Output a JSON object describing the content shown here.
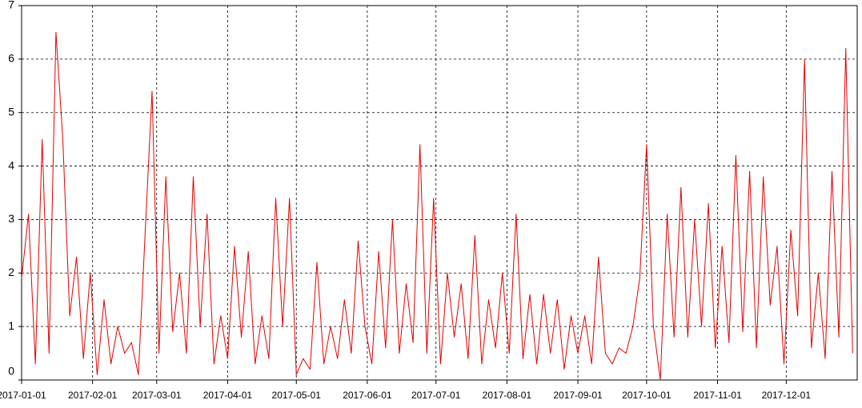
{
  "chart_data": {
    "type": "line",
    "x": [
      "2017-01-01",
      "2017-01-04",
      "2017-01-07",
      "2017-01-10",
      "2017-01-13",
      "2017-01-16",
      "2017-01-19",
      "2017-01-22",
      "2017-01-25",
      "2017-01-28",
      "2017-01-31",
      "2017-02-03",
      "2017-02-06",
      "2017-02-09",
      "2017-02-12",
      "2017-02-15",
      "2017-02-18",
      "2017-02-21",
      "2017-02-24",
      "2017-02-27",
      "2017-03-02",
      "2017-03-05",
      "2017-03-08",
      "2017-03-11",
      "2017-03-14",
      "2017-03-17",
      "2017-03-20",
      "2017-03-23",
      "2017-03-26",
      "2017-03-29",
      "2017-04-01",
      "2017-04-04",
      "2017-04-07",
      "2017-04-10",
      "2017-04-13",
      "2017-04-16",
      "2017-04-19",
      "2017-04-22",
      "2017-04-25",
      "2017-04-28",
      "2017-05-01",
      "2017-05-04",
      "2017-05-07",
      "2017-05-10",
      "2017-05-13",
      "2017-05-16",
      "2017-05-19",
      "2017-05-22",
      "2017-05-25",
      "2017-05-28",
      "2017-05-31",
      "2017-06-03",
      "2017-06-06",
      "2017-06-09",
      "2017-06-12",
      "2017-06-15",
      "2017-06-18",
      "2017-06-21",
      "2017-06-24",
      "2017-06-27",
      "2017-06-30",
      "2017-07-03",
      "2017-07-06",
      "2017-07-09",
      "2017-07-12",
      "2017-07-15",
      "2017-07-18",
      "2017-07-21",
      "2017-07-24",
      "2017-07-27",
      "2017-07-30",
      "2017-08-02",
      "2017-08-05",
      "2017-08-08",
      "2017-08-11",
      "2017-08-14",
      "2017-08-17",
      "2017-08-20",
      "2017-08-23",
      "2017-08-26",
      "2017-08-29",
      "2017-09-01",
      "2017-09-04",
      "2017-09-07",
      "2017-09-10",
      "2017-09-13",
      "2017-09-16",
      "2017-09-19",
      "2017-09-22",
      "2017-09-25",
      "2017-09-28",
      "2017-10-01",
      "2017-10-04",
      "2017-10-07",
      "2017-10-10",
      "2017-10-13",
      "2017-10-16",
      "2017-10-19",
      "2017-10-22",
      "2017-10-25",
      "2017-10-28",
      "2017-10-31",
      "2017-11-03",
      "2017-11-06",
      "2017-11-09",
      "2017-11-12",
      "2017-11-15",
      "2017-11-18",
      "2017-11-21",
      "2017-11-24",
      "2017-11-27",
      "2017-11-30",
      "2017-12-03",
      "2017-12-06",
      "2017-12-09",
      "2017-12-12",
      "2017-12-15",
      "2017-12-18",
      "2017-12-21",
      "2017-12-24",
      "2017-12-27",
      "2017-12-30"
    ],
    "series": [
      {
        "color": "#e00000",
        "values": [
          1.9,
          3.1,
          0.3,
          4.5,
          0.5,
          6.5,
          4.5,
          1.2,
          2.3,
          0.4,
          2.0,
          0.1,
          1.5,
          0.3,
          1.0,
          0.5,
          0.7,
          0.1,
          2.8,
          5.4,
          0.5,
          3.8,
          0.9,
          2.0,
          0.5,
          3.8,
          1.0,
          3.1,
          0.3,
          1.2,
          0.4,
          2.5,
          0.8,
          2.4,
          0.3,
          1.2,
          0.4,
          3.4,
          1.0,
          3.4,
          0.1,
          0.4,
          0.2,
          2.2,
          0.3,
          1.0,
          0.4,
          1.5,
          0.5,
          2.6,
          1.0,
          0.3,
          2.4,
          0.6,
          3.0,
          0.5,
          1.8,
          0.7,
          4.4,
          0.5,
          3.4,
          0.3,
          2.0,
          0.8,
          1.8,
          0.4,
          2.7,
          0.3,
          1.5,
          0.6,
          2.0,
          0.5,
          3.1,
          0.4,
          1.6,
          0.3,
          1.6,
          0.5,
          1.5,
          0.2,
          1.2,
          0.5,
          1.2,
          0.3,
          2.3,
          0.5,
          0.3,
          0.6,
          0.5,
          1.0,
          1.9,
          4.4,
          1.0,
          0.0,
          3.1,
          0.8,
          3.6,
          0.8,
          3.0,
          1.0,
          3.3,
          0.6,
          2.5,
          0.7,
          4.2,
          0.9,
          3.9,
          0.6,
          3.8,
          1.4,
          2.5,
          0.3,
          2.8,
          1.2,
          6.0,
          0.6,
          2.0,
          0.4,
          3.9,
          0.8,
          6.2,
          0.5
        ]
      }
    ],
    "xlim": [
      "2017-01-01",
      "2017-12-31"
    ],
    "xticks": [
      "2017-01-01",
      "2017-02-01",
      "2017-03-01",
      "2017-04-01",
      "2017-05-01",
      "2017-06-01",
      "2017-07-01",
      "2017-08-01",
      "2017-09-01",
      "2017-10-01",
      "2017-11-01",
      "2017-12-01"
    ],
    "ylim": [
      0,
      7
    ],
    "yticks": [
      0,
      1,
      2,
      3,
      4,
      5,
      6,
      7
    ],
    "grid": true
  }
}
